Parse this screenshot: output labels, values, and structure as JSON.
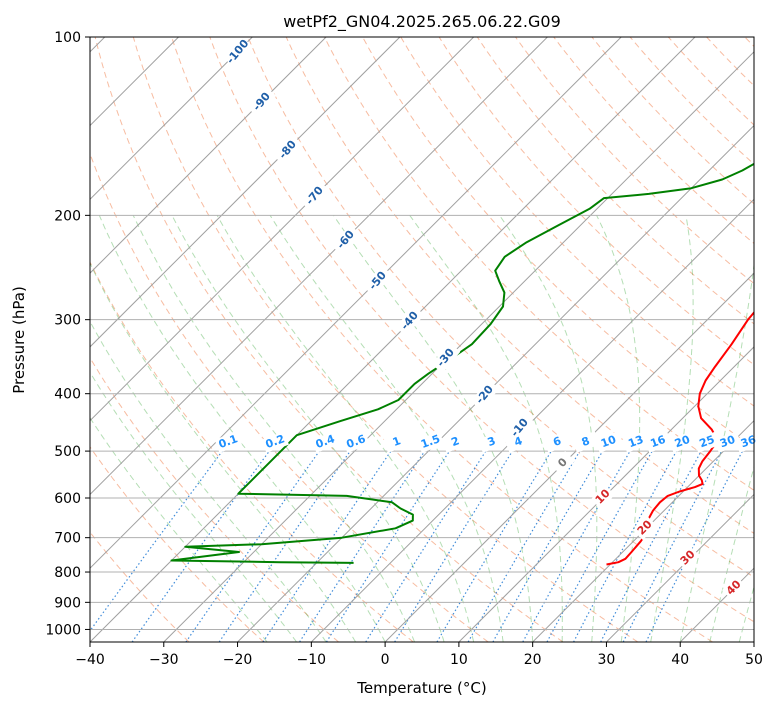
{
  "chart_data": {
    "type": "line",
    "title": "wetPf2_GN04.2025.265.06.22.G09",
    "xlabel": "Temperature (°C)",
    "ylabel": "Pressure (hPa)",
    "xlim": [
      -40,
      50
    ],
    "ylim": [
      1050,
      100
    ],
    "y_scale": "log",
    "grid": true,
    "x_ticks": [
      -40,
      -30,
      -20,
      -10,
      0,
      10,
      20,
      30,
      40,
      50
    ],
    "x_tick_labels": [
      "−40",
      "−30",
      "−20",
      "−10",
      "0",
      "10",
      "20",
      "30",
      "40",
      "50"
    ],
    "y_ticks": [
      100,
      200,
      300,
      400,
      500,
      600,
      700,
      800,
      900,
      1000
    ],
    "y_tick_labels": [
      "100",
      "200",
      "300",
      "400",
      "500",
      "600",
      "700",
      "800",
      "900",
      "1000"
    ],
    "series": [
      {
        "color": "#ff0000",
        "points": [
          [
            19.5,
            777
          ],
          [
            20.8,
            770
          ],
          [
            21.3,
            760
          ],
          [
            21.2,
            740
          ],
          [
            21.0,
            710
          ],
          [
            20.7,
            690
          ],
          [
            20.0,
            670
          ],
          [
            19.0,
            650
          ],
          [
            18.5,
            630
          ],
          [
            18.3,
            610
          ],
          [
            18.5,
            595
          ],
          [
            19.5,
            585
          ],
          [
            21.0,
            575
          ],
          [
            21.6,
            568
          ],
          [
            21.0,
            560
          ],
          [
            20.0,
            550
          ],
          [
            19.0,
            535
          ],
          [
            18.5,
            520
          ],
          [
            18.2,
            500
          ],
          [
            17.8,
            480
          ],
          [
            15.5,
            460
          ],
          [
            12.5,
            440
          ],
          [
            10.5,
            420
          ],
          [
            9.0,
            400
          ],
          [
            8.0,
            380
          ],
          [
            7.4,
            360
          ],
          [
            6.6,
            330
          ],
          [
            5.5,
            300
          ],
          [
            5.2,
            285
          ],
          [
            5.7,
            272
          ],
          [
            6.5,
            260
          ],
          [
            6.5,
            245
          ],
          [
            5.8,
            230
          ],
          [
            5.4,
            210
          ],
          [
            5.7,
            190
          ],
          [
            5.9,
            175
          ],
          [
            6.2,
            160
          ],
          [
            6.8,
            145
          ],
          [
            7.2,
            128
          ],
          [
            9.0,
            112
          ],
          [
            10.8,
            100
          ]
        ]
      },
      {
        "color": "#008000",
        "points": [
          [
            -15.0,
            772
          ],
          [
            -25.0,
            770
          ],
          [
            -40.0,
            765
          ],
          [
            -32.0,
            740
          ],
          [
            -40.0,
            725
          ],
          [
            -30.0,
            718
          ],
          [
            -20.0,
            700
          ],
          [
            -14.0,
            675
          ],
          [
            -12.7,
            655
          ],
          [
            -13.5,
            640
          ],
          [
            -16.0,
            625
          ],
          [
            -18.0,
            610
          ],
          [
            -25.0,
            595
          ],
          [
            -40.0,
            590
          ],
          [
            -40.0,
            470
          ],
          [
            -36.0,
            445
          ],
          [
            -32.5,
            425
          ],
          [
            -31.0,
            410
          ],
          [
            -31.0,
            385
          ],
          [
            -30.5,
            370
          ],
          [
            -29.5,
            350
          ],
          [
            -28.6,
            330
          ],
          [
            -28.8,
            305
          ],
          [
            -29.5,
            285
          ],
          [
            -31.2,
            270
          ],
          [
            -33.5,
            258
          ],
          [
            -35.4,
            248
          ],
          [
            -36.0,
            235
          ],
          [
            -35.0,
            222
          ],
          [
            -33.0,
            208
          ],
          [
            -31.0,
            195
          ],
          [
            -30.5,
            187
          ],
          [
            -25.0,
            184
          ],
          [
            -20.0,
            180
          ],
          [
            -17.0,
            174
          ],
          [
            -15.5,
            168
          ],
          [
            -13.5,
            156
          ],
          [
            -11.0,
            145
          ],
          [
            -8.5,
            135
          ],
          [
            -6.5,
            124
          ],
          [
            -4.5,
            114
          ],
          [
            -2.5,
            104
          ],
          [
            -1.2,
            100
          ]
        ]
      }
    ],
    "dry_adiabat_labels": [
      "-100",
      "-90",
      "-80",
      "-70",
      "-60",
      "-50",
      "-40",
      "-30",
      "-20",
      "-10"
    ],
    "mixing_ratio_labels": [
      "0.1",
      "0.2",
      "0.4",
      "0.6",
      "1",
      "1.5",
      "2",
      "3",
      "4",
      "6",
      "8",
      "10",
      "13",
      "16",
      "20",
      "25",
      "30",
      "36"
    ],
    "moist_adiabat_labels": [
      "0",
      "10",
      "20",
      "30",
      "40"
    ]
  }
}
